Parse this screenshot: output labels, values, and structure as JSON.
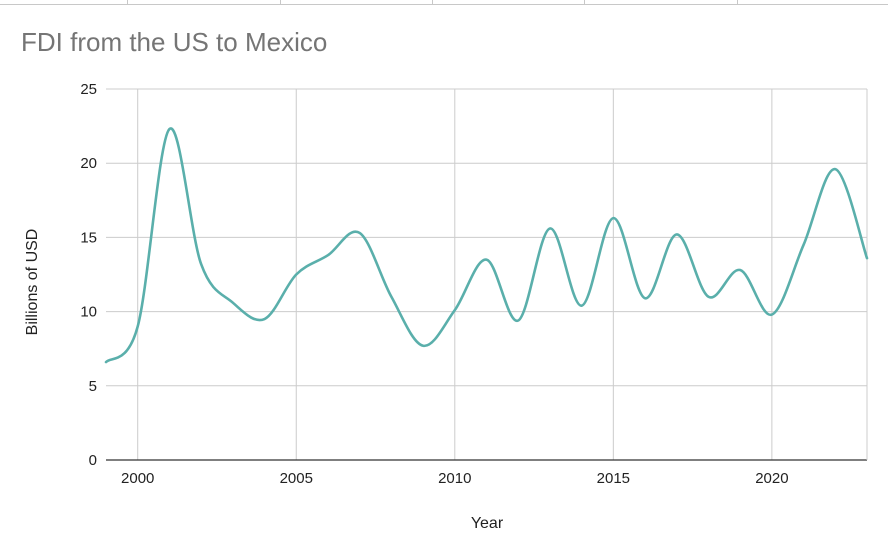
{
  "chart_data": {
    "type": "line",
    "title": "FDI from the US to Mexico",
    "xlabel": "Year",
    "ylabel": "Billions of USD",
    "xlim": [
      1999,
      2023
    ],
    "ylim": [
      0,
      25
    ],
    "x_ticks": [
      2000,
      2005,
      2010,
      2015,
      2020
    ],
    "y_ticks": [
      0,
      5,
      10,
      15,
      20,
      25
    ],
    "grid": true,
    "series": [
      {
        "name": "FDI",
        "color": "#5aafab",
        "x": [
          1999,
          2000,
          2001,
          2002,
          2003,
          2004,
          2005,
          2006,
          2007,
          2008,
          2009,
          2010,
          2011,
          2012,
          2013,
          2014,
          2015,
          2016,
          2017,
          2018,
          2019,
          2020,
          2021,
          2022,
          2023
        ],
        "y": [
          6.6,
          9.0,
          22.3,
          13.2,
          10.6,
          9.5,
          12.5,
          13.8,
          15.3,
          11.0,
          7.7,
          10.1,
          13.5,
          9.4,
          15.6,
          10.4,
          16.3,
          10.9,
          15.2,
          11.0,
          12.8,
          9.8,
          14.5,
          19.6,
          13.6
        ]
      }
    ]
  }
}
